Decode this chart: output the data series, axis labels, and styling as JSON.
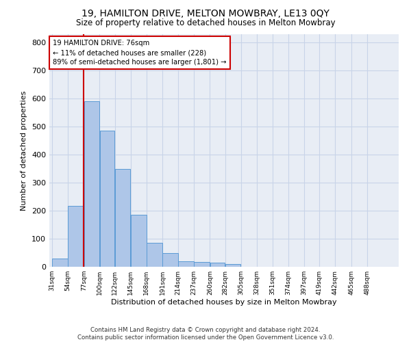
{
  "title": "19, HAMILTON DRIVE, MELTON MOWBRAY, LE13 0QY",
  "subtitle": "Size of property relative to detached houses in Melton Mowbray",
  "xlabel": "Distribution of detached houses by size in Melton Mowbray",
  "ylabel": "Number of detached properties",
  "footer_line1": "Contains HM Land Registry data © Crown copyright and database right 2024.",
  "footer_line2": "Contains public sector information licensed under the Open Government Licence v3.0.",
  "categories": [
    "31sqm",
    "54sqm",
    "77sqm",
    "100sqm",
    "122sqm",
    "145sqm",
    "168sqm",
    "191sqm",
    "214sqm",
    "237sqm",
    "260sqm",
    "282sqm",
    "305sqm",
    "328sqm",
    "351sqm",
    "374sqm",
    "397sqm",
    "419sqm",
    "442sqm",
    "465sqm",
    "488sqm"
  ],
  "values": [
    30,
    218,
    590,
    487,
    348,
    185,
    85,
    50,
    20,
    16,
    15,
    9,
    0,
    0,
    0,
    0,
    0,
    0,
    0,
    0,
    0
  ],
  "bar_color": "#aec6e8",
  "bar_edge_color": "#5b9bd5",
  "grid_color": "#c8d4e8",
  "background_color": "#e8edf5",
  "annotation_line1": "19 HAMILTON DRIVE: 76sqm",
  "annotation_line2": "← 11% of detached houses are smaller (228)",
  "annotation_line3": "89% of semi-detached houses are larger (1,801) →",
  "annotation_box_color": "#ffffff",
  "annotation_box_edge": "#cc0000",
  "marker_color": "#cc0000",
  "ylim_max": 830,
  "bin_edges": [
    31,
    54,
    77,
    100,
    122,
    145,
    168,
    191,
    214,
    237,
    260,
    282,
    305,
    328,
    351,
    374,
    397,
    419,
    442,
    465,
    488,
    511
  ]
}
